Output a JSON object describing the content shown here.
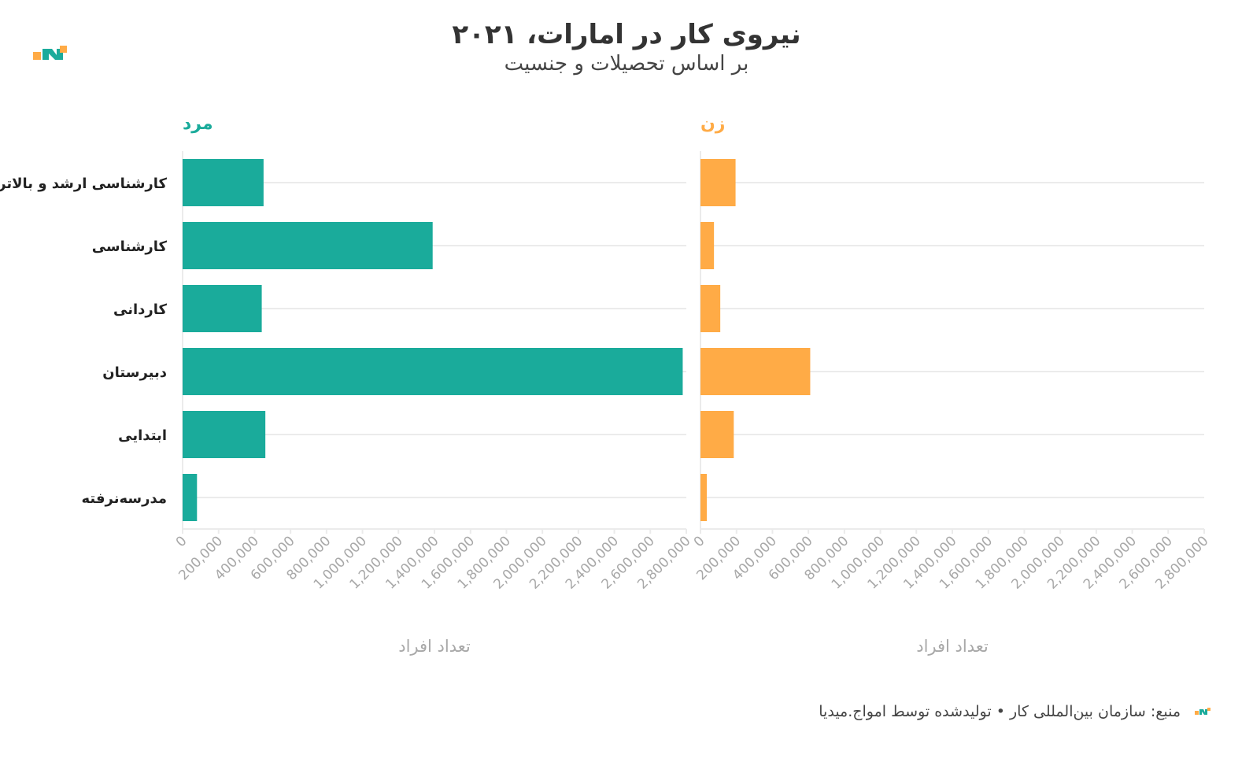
{
  "title": "نیروی کار در امارات، ۲۰۲۱",
  "subtitle": "بر اساس تحصیلات و جنسیت",
  "source": "منبع: سازمان بین‌المللی کار • تولیدشده توسط امواج.میدیا",
  "colors": {
    "male": "#1aab9b",
    "female": "#ffab46",
    "grid": "#ebebeb",
    "axis_text": "#a8a8a8"
  },
  "chart_data": {
    "type": "bar",
    "orientation": "horizontal",
    "categories": [
      "کارشناسی ارشد و بالاتر",
      "کارشناسی",
      "کاردانی",
      "دبیرستان",
      "ابتدایی",
      "مدرسه‌نرفته"
    ],
    "xlabel": "تعداد افراد",
    "xlim": [
      0,
      2800000
    ],
    "xticks": [
      0,
      200000,
      400000,
      600000,
      800000,
      1000000,
      1200000,
      1400000,
      1600000,
      1800000,
      2000000,
      2200000,
      2400000,
      2600000,
      2800000
    ],
    "xtick_labels": [
      "0",
      "200,000",
      "400,000",
      "600,000",
      "800,000",
      "1,000,000",
      "1,200,000",
      "1,400,000",
      "1,600,000",
      "1,800,000",
      "2,000,000",
      "2,200,000",
      "2,400,000",
      "2,600,000",
      "2,800,000"
    ],
    "grid": true,
    "series": [
      {
        "name": "مرد",
        "color": "#1aab9b",
        "values": [
          450000,
          1390000,
          440000,
          2780000,
          460000,
          80000
        ]
      },
      {
        "name": "زن",
        "color": "#ffab46",
        "values": [
          195000,
          75000,
          110000,
          610000,
          185000,
          35000
        ]
      }
    ]
  }
}
